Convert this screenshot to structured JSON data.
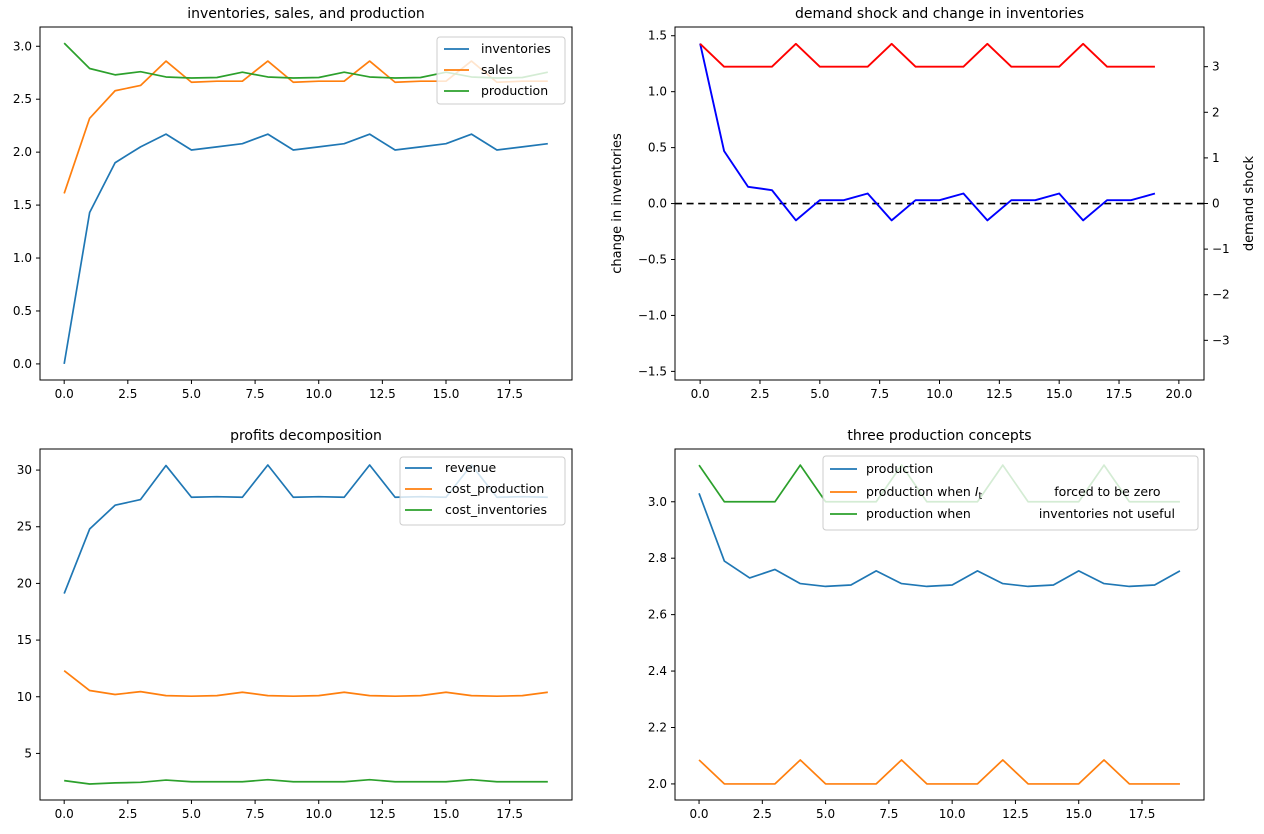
{
  "figure": {
    "background": "#ffffff"
  },
  "palette": {
    "mpl_blue": "#1f77b4",
    "mpl_orange": "#ff7f0e",
    "mpl_green": "#2ca02c",
    "pure_blue": "#0000ff",
    "pure_red": "#ff0000",
    "black": "#000000"
  },
  "chart_data": [
    {
      "id": "inventories_sales_production",
      "type": "line",
      "title": "inventories, sales, and production",
      "x": [
        0,
        1,
        2,
        3,
        4,
        5,
        6,
        7,
        8,
        9,
        10,
        11,
        12,
        13,
        14,
        15,
        16,
        17,
        18,
        19
      ],
      "series": [
        {
          "name": "inventories",
          "color": "#1f77b4",
          "values": [
            0.0,
            1.43,
            1.9,
            2.05,
            2.17,
            2.02,
            2.05,
            2.08,
            2.17,
            2.02,
            2.05,
            2.08,
            2.17,
            2.02,
            2.05,
            2.08,
            2.17,
            2.02,
            2.05,
            2.08
          ]
        },
        {
          "name": "sales",
          "color": "#ff7f0e",
          "values": [
            1.61,
            2.32,
            2.58,
            2.63,
            2.86,
            2.66,
            2.67,
            2.67,
            2.86,
            2.66,
            2.67,
            2.67,
            2.86,
            2.66,
            2.67,
            2.67,
            2.86,
            2.66,
            2.67,
            2.67
          ]
        },
        {
          "name": "production",
          "color": "#2ca02c",
          "values": [
            3.03,
            2.79,
            2.73,
            2.76,
            2.71,
            2.7,
            2.705,
            2.755,
            2.71,
            2.7,
            2.705,
            2.755,
            2.71,
            2.7,
            2.705,
            2.755,
            2.71,
            2.7,
            2.705,
            2.755
          ]
        }
      ],
      "xlim": [
        -0.95,
        19.95
      ],
      "ylim": [
        -0.152,
        3.182
      ],
      "xtick_values": [
        0,
        2.5,
        5,
        7.5,
        10,
        12.5,
        15,
        17.5
      ],
      "xtick_labels": [
        "0.0",
        "2.5",
        "5.0",
        "7.5",
        "10.0",
        "12.5",
        "15.0",
        "17.5"
      ],
      "ytick_values": [
        0,
        0.5,
        1,
        1.5,
        2,
        2.5,
        3
      ],
      "ytick_labels": [
        "0.0",
        "0.5",
        "1.0",
        "1.5",
        "2.0",
        "2.5",
        "3.0"
      ],
      "legend": {
        "position": "upper right",
        "entries": [
          {
            "color": "#1f77b4",
            "segments": [
              {
                "t": "inventories"
              }
            ]
          },
          {
            "color": "#ff7f0e",
            "segments": [
              {
                "t": "sales"
              }
            ]
          },
          {
            "color": "#2ca02c",
            "segments": [
              {
                "t": "production"
              }
            ]
          }
        ]
      }
    },
    {
      "id": "demand_shock_change_inventories",
      "type": "line",
      "title": "demand shock and change in inventories",
      "x": [
        0,
        1,
        2,
        3,
        4,
        5,
        6,
        7,
        8,
        9,
        10,
        11,
        12,
        13,
        14,
        15,
        16,
        17,
        18,
        19
      ],
      "series": [
        {
          "name": "change in inventories",
          "axis": "left",
          "color": "#0000ff",
          "values": [
            1.43,
            0.47,
            0.15,
            0.12,
            -0.15,
            0.03,
            0.03,
            0.09,
            -0.15,
            0.03,
            0.03,
            0.09,
            -0.15,
            0.03,
            0.03,
            0.09,
            -0.15,
            0.03,
            0.03,
            0.09
          ]
        },
        {
          "name": "demand shock",
          "axis": "right",
          "color": "#ff0000",
          "values": [
            3.5,
            3,
            3,
            3,
            3.5,
            3,
            3,
            3,
            3.5,
            3,
            3,
            3,
            3.5,
            3,
            3,
            3,
            3.5,
            3,
            3,
            3
          ]
        }
      ],
      "zero_line": {
        "y": 0,
        "color": "#000000",
        "style": "dashed"
      },
      "xlim": [
        -1.05,
        21.05
      ],
      "ylim": [
        -1.577,
        1.578
      ],
      "ylim_right": [
        -3.87,
        3.87
      ],
      "xtick_values": [
        0,
        2.5,
        5,
        7.5,
        10,
        12.5,
        15,
        17.5,
        20
      ],
      "xtick_labels": [
        "0.0",
        "2.5",
        "5.0",
        "7.5",
        "10.0",
        "12.5",
        "15.0",
        "17.5",
        "20.0"
      ],
      "ytick_values": [
        -1.5,
        -1,
        -0.5,
        0,
        0.5,
        1,
        1.5
      ],
      "ytick_labels": [
        "−1.5",
        "−1.0",
        "−0.5",
        "0.0",
        "0.5",
        "1.0",
        "1.5"
      ],
      "ytick_right_values": [
        -3,
        -2,
        -1,
        0,
        1,
        2,
        3
      ],
      "ytick_right_labels": [
        "−3",
        "−2",
        "−1",
        "0",
        "1",
        "2",
        "3"
      ],
      "ylabel_left": {
        "text": "change in inventories",
        "color": "#0000ff"
      },
      "ylabel_right": {
        "text": "demand shock",
        "color": "#ff0000"
      }
    },
    {
      "id": "profits_decomposition",
      "type": "line",
      "title": "profits decomposition",
      "x": [
        0,
        1,
        2,
        3,
        4,
        5,
        6,
        7,
        8,
        9,
        10,
        11,
        12,
        13,
        14,
        15,
        16,
        17,
        18,
        19
      ],
      "series": [
        {
          "name": "revenue",
          "color": "#1f77b4",
          "values": [
            19.1,
            24.8,
            26.9,
            27.4,
            30.4,
            27.6,
            27.65,
            27.6,
            30.45,
            27.6,
            27.65,
            27.6,
            30.45,
            27.6,
            27.65,
            27.6,
            30.45,
            27.6,
            27.65,
            27.6
          ]
        },
        {
          "name": "cost_production",
          "color": "#ff7f0e",
          "values": [
            12.3,
            10.55,
            10.2,
            10.45,
            10.1,
            10.05,
            10.1,
            10.4,
            10.1,
            10.05,
            10.1,
            10.4,
            10.1,
            10.05,
            10.1,
            10.4,
            10.1,
            10.05,
            10.1,
            10.4
          ]
        },
        {
          "name": "cost_inventories",
          "color": "#2ca02c",
          "values": [
            2.6,
            2.3,
            2.4,
            2.45,
            2.65,
            2.5,
            2.5,
            2.5,
            2.68,
            2.5,
            2.5,
            2.5,
            2.68,
            2.5,
            2.5,
            2.5,
            2.68,
            2.5,
            2.5,
            2.5
          ]
        }
      ],
      "xlim": [
        -0.95,
        19.95
      ],
      "ylim": [
        0.89,
        31.86
      ],
      "xtick_values": [
        0,
        2.5,
        5,
        7.5,
        10,
        12.5,
        15,
        17.5
      ],
      "xtick_labels": [
        "0.0",
        "2.5",
        "5.0",
        "7.5",
        "10.0",
        "12.5",
        "15.0",
        "17.5"
      ],
      "ytick_values": [
        5,
        10,
        15,
        20,
        25,
        30
      ],
      "ytick_labels": [
        "5",
        "10",
        "15",
        "20",
        "25",
        "30"
      ],
      "legend": {
        "position": "upper right",
        "entries": [
          {
            "color": "#1f77b4",
            "segments": [
              {
                "t": "revenue"
              }
            ]
          },
          {
            "color": "#ff7f0e",
            "segments": [
              {
                "t": "cost_production"
              }
            ]
          },
          {
            "color": "#2ca02c",
            "segments": [
              {
                "t": "cost_inventories"
              }
            ]
          }
        ]
      }
    },
    {
      "id": "three_production_concepts",
      "type": "line",
      "title": "three production concepts",
      "x": [
        0,
        1,
        2,
        3,
        4,
        5,
        6,
        7,
        8,
        9,
        10,
        11,
        12,
        13,
        14,
        15,
        16,
        17,
        18,
        19
      ],
      "series": [
        {
          "name": "production",
          "color": "#1f77b4",
          "values": [
            3.03,
            2.79,
            2.73,
            2.76,
            2.71,
            2.7,
            2.705,
            2.755,
            2.71,
            2.7,
            2.705,
            2.755,
            2.71,
            2.7,
            2.705,
            2.755,
            2.71,
            2.7,
            2.705,
            2.755
          ]
        },
        {
          "name": "production when I_t forced to be zero",
          "color": "#ff7f0e",
          "values": [
            2.085,
            2.0,
            2.0,
            2.0,
            2.085,
            2.0,
            2.0,
            2.0,
            2.085,
            2.0,
            2.0,
            2.0,
            2.085,
            2.0,
            2.0,
            2.0,
            2.085,
            2.0,
            2.0,
            2.0
          ]
        },
        {
          "name": "production when inventories not useful",
          "color": "#2ca02c",
          "values": [
            3.13,
            3.0,
            3.0,
            3.0,
            3.13,
            3.0,
            3.0,
            3.0,
            3.13,
            3.0,
            3.0,
            3.0,
            3.13,
            3.0,
            3.0,
            3.0,
            3.13,
            3.0,
            3.0,
            3.0
          ]
        }
      ],
      "xlim": [
        -0.95,
        19.95
      ],
      "ylim": [
        1.943,
        3.187
      ],
      "xtick_values": [
        0,
        2.5,
        5,
        7.5,
        10,
        12.5,
        15,
        17.5
      ],
      "xtick_labels": [
        "0.0",
        "2.5",
        "5.0",
        "7.5",
        "10.0",
        "12.5",
        "15.0",
        "17.5"
      ],
      "ytick_values": [
        2.0,
        2.2,
        2.4,
        2.6,
        2.8,
        3.0
      ],
      "ytick_labels": [
        "2.0",
        "2.2",
        "2.4",
        "2.6",
        "2.8",
        "3.0"
      ],
      "legend": {
        "position": "upper right",
        "entries": [
          {
            "color": "#1f77b4",
            "segments": [
              {
                "t": "production"
              }
            ]
          },
          {
            "color": "#ff7f0e",
            "segments": [
              {
                "t": "production when "
              },
              {
                "t": "I",
                "italic": true
              },
              {
                "t": "t",
                "sub": true
              },
              {
                "gap": 72
              },
              {
                "t": "forced to be zero"
              }
            ]
          },
          {
            "color": "#2ca02c",
            "segments": [
              {
                "t": "production when"
              },
              {
                "gap": 68
              },
              {
                "t": "inventories not useful"
              }
            ]
          }
        ]
      }
    }
  ]
}
